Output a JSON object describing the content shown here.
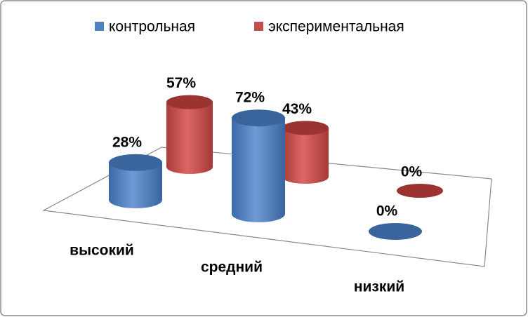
{
  "chart_data": {
    "type": "bar3d",
    "categories": [
      "высокий",
      "средний",
      "низкий"
    ],
    "series": [
      {
        "name": "контрольная",
        "color": "#4f81bd",
        "values": [
          28,
          72,
          0
        ],
        "value_labels": [
          "28%",
          "72%",
          "0%"
        ]
      },
      {
        "name": "экспериментальная",
        "color": "#c0504d",
        "values": [
          57,
          43,
          0
        ],
        "value_labels": [
          "57%",
          "43%",
          "0%"
        ]
      }
    ],
    "legend": "top"
  }
}
